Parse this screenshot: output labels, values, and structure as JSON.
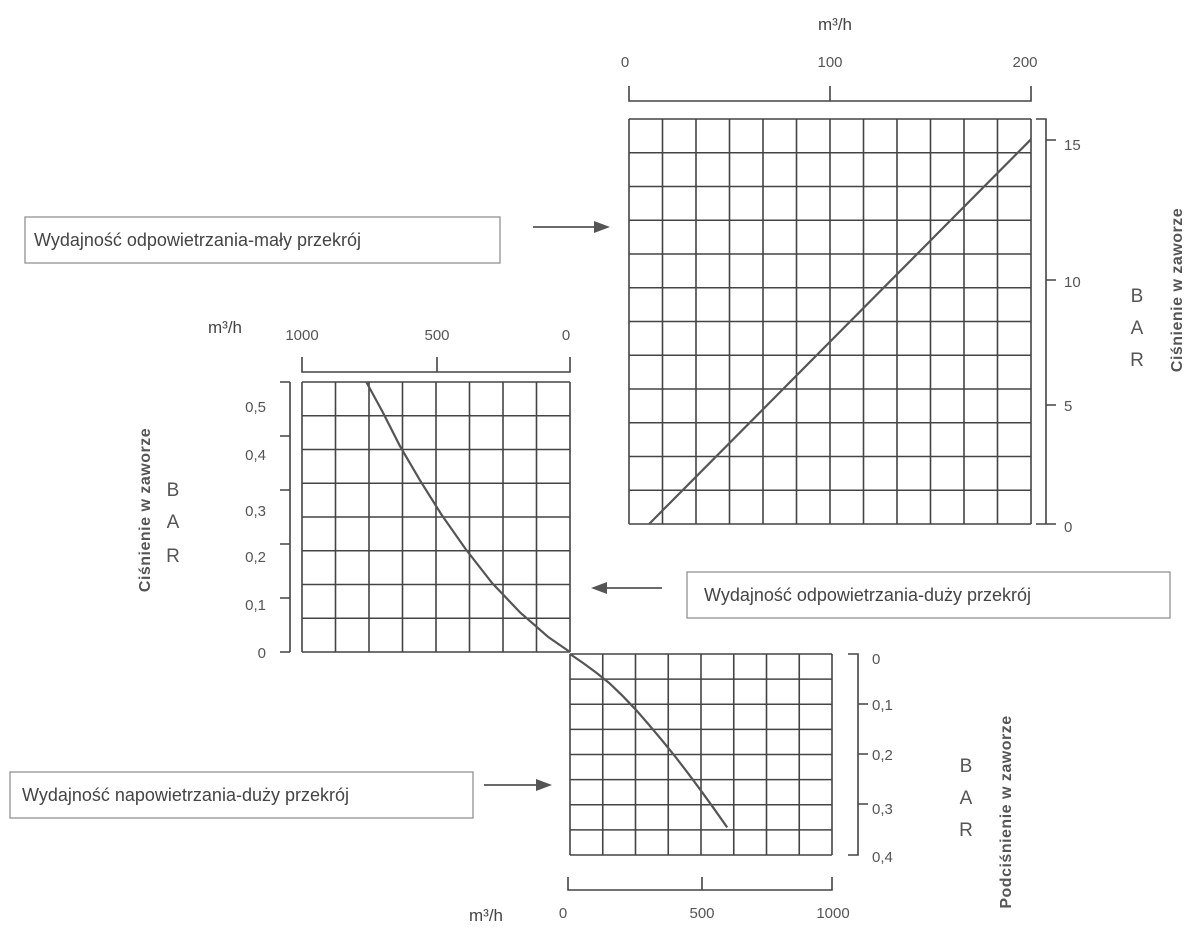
{
  "chart_data": [
    {
      "type": "line",
      "unit_label": "m³/h",
      "bar_label": [
        "B",
        "A",
        "R"
      ],
      "x_ticks": [
        "0",
        "100",
        "200"
      ],
      "y_ticks": [
        "0",
        "5",
        "10",
        "15"
      ],
      "xlim": [
        0,
        200
      ],
      "ylim": [
        0,
        16
      ],
      "ylabel": "Ciśnienie w zaworze",
      "annotation": "Wydajność odpowietrzania-mały przekrój",
      "grid": true,
      "series": [
        {
          "x": [
            10,
            200
          ],
          "y": [
            0,
            15.2
          ]
        }
      ]
    },
    {
      "type": "line",
      "unit_label": "m³/h",
      "bar_label": [
        "B",
        "A",
        "R"
      ],
      "x_ticks": [
        "1000",
        "500",
        "0"
      ],
      "y_ticks": [
        "0",
        "0,1",
        "0,2",
        "0,3",
        "0,4",
        "0,5"
      ],
      "xlim": [
        1000,
        0
      ],
      "ylim": [
        0,
        0.55
      ],
      "x_reversed": true,
      "ylabel": "Ciśnienie w zaworze",
      "annotation": "Wydajność odpowietrzania-duży przekrój",
      "grid": true,
      "series": [
        {
          "x": [
            0,
            80,
            185,
            290,
            390,
            480,
            560,
            635,
            700,
            760
          ],
          "y": [
            0,
            0.03,
            0.08,
            0.14,
            0.21,
            0.28,
            0.35,
            0.42,
            0.49,
            0.55
          ]
        }
      ]
    },
    {
      "type": "line",
      "unit_label": "m³/h",
      "bar_label": [
        "B",
        "A",
        "R"
      ],
      "x_ticks": [
        "0",
        "500",
        "1000"
      ],
      "y_ticks": [
        "0",
        "0,1",
        "0,2",
        "0,3",
        "0,4"
      ],
      "xlim": [
        0,
        1000
      ],
      "ylim": [
        0,
        0.4
      ],
      "y_reversed": true,
      "ylabel": "Podciśnienie w zaworze",
      "annotation": "Wydajność napowietrzania-duży przekrój",
      "grid": true,
      "series": [
        {
          "x": [
            0,
            50,
            100,
            150,
            200,
            250,
            300,
            350,
            400,
            450,
            500,
            550,
            600
          ],
          "y": [
            0,
            0.018,
            0.037,
            0.058,
            0.083,
            0.11,
            0.14,
            0.171,
            0.203,
            0.237,
            0.272,
            0.308,
            0.345
          ]
        }
      ]
    }
  ]
}
